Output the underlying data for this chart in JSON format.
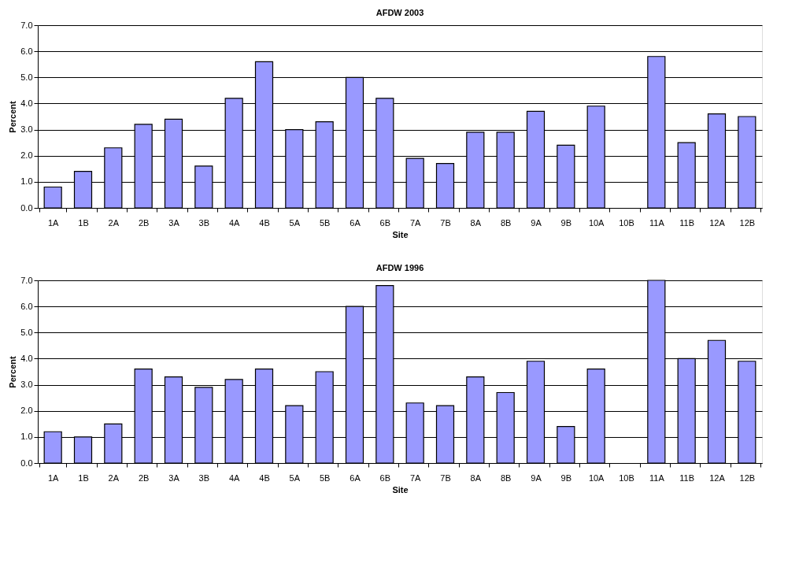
{
  "chart_data": [
    {
      "type": "bar",
      "title": "AFDW  2003",
      "xlabel": "Site",
      "ylabel": "Percent",
      "categories": [
        "1A",
        "1B",
        "2A",
        "2B",
        "3A",
        "3B",
        "4A",
        "4B",
        "5A",
        "5B",
        "6A",
        "6B",
        "7A",
        "7B",
        "8A",
        "8B",
        "9A",
        "9B",
        "10A",
        "10B",
        "11A",
        "11B",
        "12A",
        "12B"
      ],
      "series": [
        {
          "color": "#9999ff",
          "values": [
            0.8,
            1.4,
            2.3,
            3.2,
            3.4,
            1.6,
            4.2,
            5.6,
            3.0,
            3.3,
            5.0,
            4.2,
            1.9,
            1.7,
            2.9,
            2.9,
            3.7,
            2.4,
            3.9,
            null,
            5.8,
            2.5,
            3.6,
            3.5
          ]
        }
      ],
      "ylim": [
        0,
        7
      ],
      "yticks": [
        {
          "value": 0,
          "label": "0.0"
        },
        {
          "value": 1,
          "label": "1.0"
        },
        {
          "value": 2,
          "label": "2.0"
        },
        {
          "value": 3,
          "label": "3.0"
        },
        {
          "value": 4,
          "label": "4.0"
        },
        {
          "value": 5,
          "label": "5.0"
        },
        {
          "value": 6,
          "label": "6.0"
        },
        {
          "value": 7,
          "label": "7.0"
        }
      ],
      "grid": "y",
      "legend": false
    },
    {
      "type": "bar",
      "title": "AFDW  1996",
      "xlabel": "Site",
      "ylabel": "Percent",
      "categories": [
        "1A",
        "1B",
        "2A",
        "2B",
        "3A",
        "3B",
        "4A",
        "4B",
        "5A",
        "5B",
        "6A",
        "6B",
        "7A",
        "7B",
        "8A",
        "8B",
        "9A",
        "9B",
        "10A",
        "10B",
        "11A",
        "11B",
        "12A",
        "12B"
      ],
      "series": [
        {
          "color": "#9999ff",
          "values": [
            1.2,
            1.0,
            1.5,
            3.6,
            3.3,
            2.9,
            3.2,
            3.6,
            2.2,
            3.5,
            6.0,
            6.8,
            2.3,
            2.2,
            3.3,
            2.7,
            3.9,
            1.4,
            3.6,
            null,
            7.0,
            4.0,
            4.7,
            3.9
          ]
        }
      ],
      "ylim": [
        0,
        7
      ],
      "yticks": [
        {
          "value": 0,
          "label": "0.0"
        },
        {
          "value": 1,
          "label": "1.0"
        },
        {
          "value": 2,
          "label": "2.0"
        },
        {
          "value": 3,
          "label": "3.0"
        },
        {
          "value": 4,
          "label": "4.0"
        },
        {
          "value": 5,
          "label": "5.0"
        },
        {
          "value": 6,
          "label": "6.0"
        },
        {
          "value": 7,
          "label": "7.0"
        }
      ],
      "grid": "y",
      "legend": false
    }
  ]
}
